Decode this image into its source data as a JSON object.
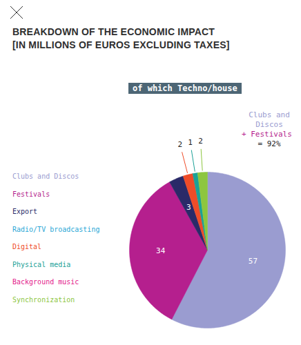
{
  "chart_data": {
    "type": "pie",
    "title": "BREAKDOWN OF THE ECONOMIC IMPACT",
    "subtitle": "[IN MILLIONS OF EUROS EXCLUDING TAXES]",
    "subheading": "of which Techno/house",
    "categories": [
      "Clubs and Discos",
      "Festivals",
      "Export",
      "Radio/TV broadcasting",
      "Digital",
      "Physical media",
      "Background music",
      "Synchronization"
    ],
    "values": [
      57,
      34,
      3,
      0,
      2,
      1,
      0,
      2
    ],
    "colors": [
      "#9a9cd0",
      "#b51f8e",
      "#2a2a68",
      "#2aa7d6",
      "#ef4c28",
      "#1ba197",
      "#e3208b",
      "#8dc63f"
    ],
    "data_labels": true,
    "legend": "left",
    "annotations": [
      {
        "text": "Clubs and Discos",
        "color": "#9a9cd0"
      },
      {
        "text": "+ Festivals",
        "color": "#b51f8e"
      },
      {
        "text": "= 92%",
        "color": "#222222"
      }
    ]
  }
}
